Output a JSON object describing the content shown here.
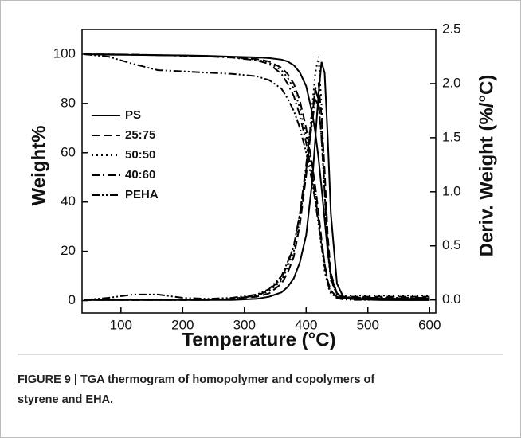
{
  "chart_data": {
    "type": "line",
    "x_label": "Temperature (°C)",
    "y_label": "Weight%",
    "y2_label": "Deriv. Weight (%/°C)",
    "caption": [
      "FIGURE 9 | TGA thermogram of homopolymer and copolymers of",
      "styrene and EHA."
    ],
    "x": [
      40,
      80,
      120,
      160,
      200,
      240,
      280,
      320,
      340,
      360,
      370,
      380,
      390,
      400,
      410,
      415,
      420,
      425,
      430,
      435,
      440,
      450,
      460,
      480,
      520,
      560,
      600
    ],
    "xlim": [
      37,
      610
    ],
    "xticks": [
      100,
      200,
      300,
      400,
      500,
      600
    ],
    "ylim": [
      -5,
      110
    ],
    "yticks": [
      0,
      20,
      40,
      60,
      80,
      100
    ],
    "y2lim": [
      -0.12,
      2.5
    ],
    "y2ticks": [
      {
        "value": 0,
        "label": "0.0"
      },
      0.5,
      {
        "value": 1,
        "label": "1.0"
      },
      1.5,
      {
        "value": 2,
        "label": "2.0"
      },
      2.5
    ],
    "legend": "upper left",
    "series": [
      {
        "name": "PS",
        "color": "#000000",
        "dash": "none",
        "values": [
          100,
          99.8,
          99.7,
          99.6,
          99.5,
          99.3,
          99,
          98.7,
          98.4,
          97.8,
          97,
          95.5,
          92.5,
          87,
          76,
          68,
          58,
          46,
          33,
          20,
          10,
          3,
          1,
          0.5,
          0.3,
          0.2,
          0.2
        ],
        "deriv": [
          0,
          0,
          0,
          0,
          0,
          0,
          0,
          0.01,
          0.03,
          0.07,
          0.12,
          0.2,
          0.35,
          0.6,
          1.1,
          1.5,
          1.9,
          2.2,
          2.1,
          1.5,
          0.8,
          0.15,
          0.03,
          0.01,
          0,
          0,
          0
        ]
      },
      {
        "name": "25:75",
        "color": "#000000",
        "dash": "10,5",
        "values": [
          100,
          99.9,
          99.8,
          99.6,
          99.4,
          99.2,
          98.8,
          98,
          97,
          94.5,
          92,
          88,
          81,
          70,
          55,
          46,
          36,
          25,
          15,
          8,
          4,
          1.5,
          1,
          1,
          0.8,
          0.8,
          0.8
        ],
        "deriv": [
          0,
          0,
          0,
          0,
          0,
          0,
          0.01,
          0.03,
          0.06,
          0.15,
          0.25,
          0.4,
          0.7,
          1.15,
          1.7,
          1.95,
          2.0,
          1.7,
          1.2,
          0.6,
          0.25,
          0.05,
          0.03,
          0.03,
          0.03,
          0.03,
          0.03
        ]
      },
      {
        "name": "50:50",
        "color": "#000000",
        "dash": "2,4",
        "values": [
          100,
          99.9,
          99.8,
          99.6,
          99.4,
          99.1,
          98.7,
          97.8,
          96.5,
          93.5,
          90.5,
          86,
          78,
          67,
          52,
          44,
          33,
          22,
          12,
          6,
          3,
          1.5,
          1.2,
          1.2,
          1,
          1,
          1
        ],
        "deriv": [
          0,
          0,
          0,
          0,
          0,
          0,
          0.01,
          0.04,
          0.08,
          0.18,
          0.3,
          0.45,
          0.75,
          1.2,
          1.8,
          2.1,
          2.25,
          1.8,
          1.0,
          0.45,
          0.18,
          0.05,
          0.04,
          0.04,
          0.04,
          0.04,
          0.04
        ]
      },
      {
        "name": "40:60",
        "color": "#000000",
        "dash": "10,4,2,4",
        "values": [
          100,
          99.9,
          99.8,
          99.6,
          99.4,
          99.1,
          98.6,
          97.5,
          96,
          92,
          88,
          83,
          75,
          64,
          50,
          42,
          33,
          24,
          15,
          8,
          4,
          1.5,
          1,
          0.8,
          0.8,
          0.8,
          0.8
        ],
        "deriv": [
          0,
          0,
          0,
          0,
          0,
          0,
          0.01,
          0.04,
          0.09,
          0.2,
          0.33,
          0.5,
          0.8,
          1.25,
          1.75,
          1.95,
          1.85,
          1.5,
          1.0,
          0.5,
          0.2,
          0.05,
          0.03,
          0.02,
          0.02,
          0.02,
          0.02
        ]
      },
      {
        "name": "PEHA",
        "color": "#000000",
        "dash": "10,3,2,3,2,3",
        "values": [
          100,
          99,
          96,
          93.5,
          93,
          92.5,
          92,
          91,
          89.5,
          86,
          82,
          77,
          70,
          60,
          48,
          40,
          31,
          22,
          14,
          7,
          3,
          1,
          0.5,
          0.3,
          0.3,
          0.3,
          0.3
        ],
        "deriv": [
          0,
          0.02,
          0.05,
          0.05,
          0.02,
          0.01,
          0.02,
          0.05,
          0.1,
          0.22,
          0.35,
          0.5,
          0.8,
          1.2,
          1.65,
          1.85,
          1.8,
          1.5,
          1.0,
          0.5,
          0.2,
          0.05,
          0.02,
          0.01,
          0.01,
          0.01,
          0.01
        ]
      }
    ]
  }
}
